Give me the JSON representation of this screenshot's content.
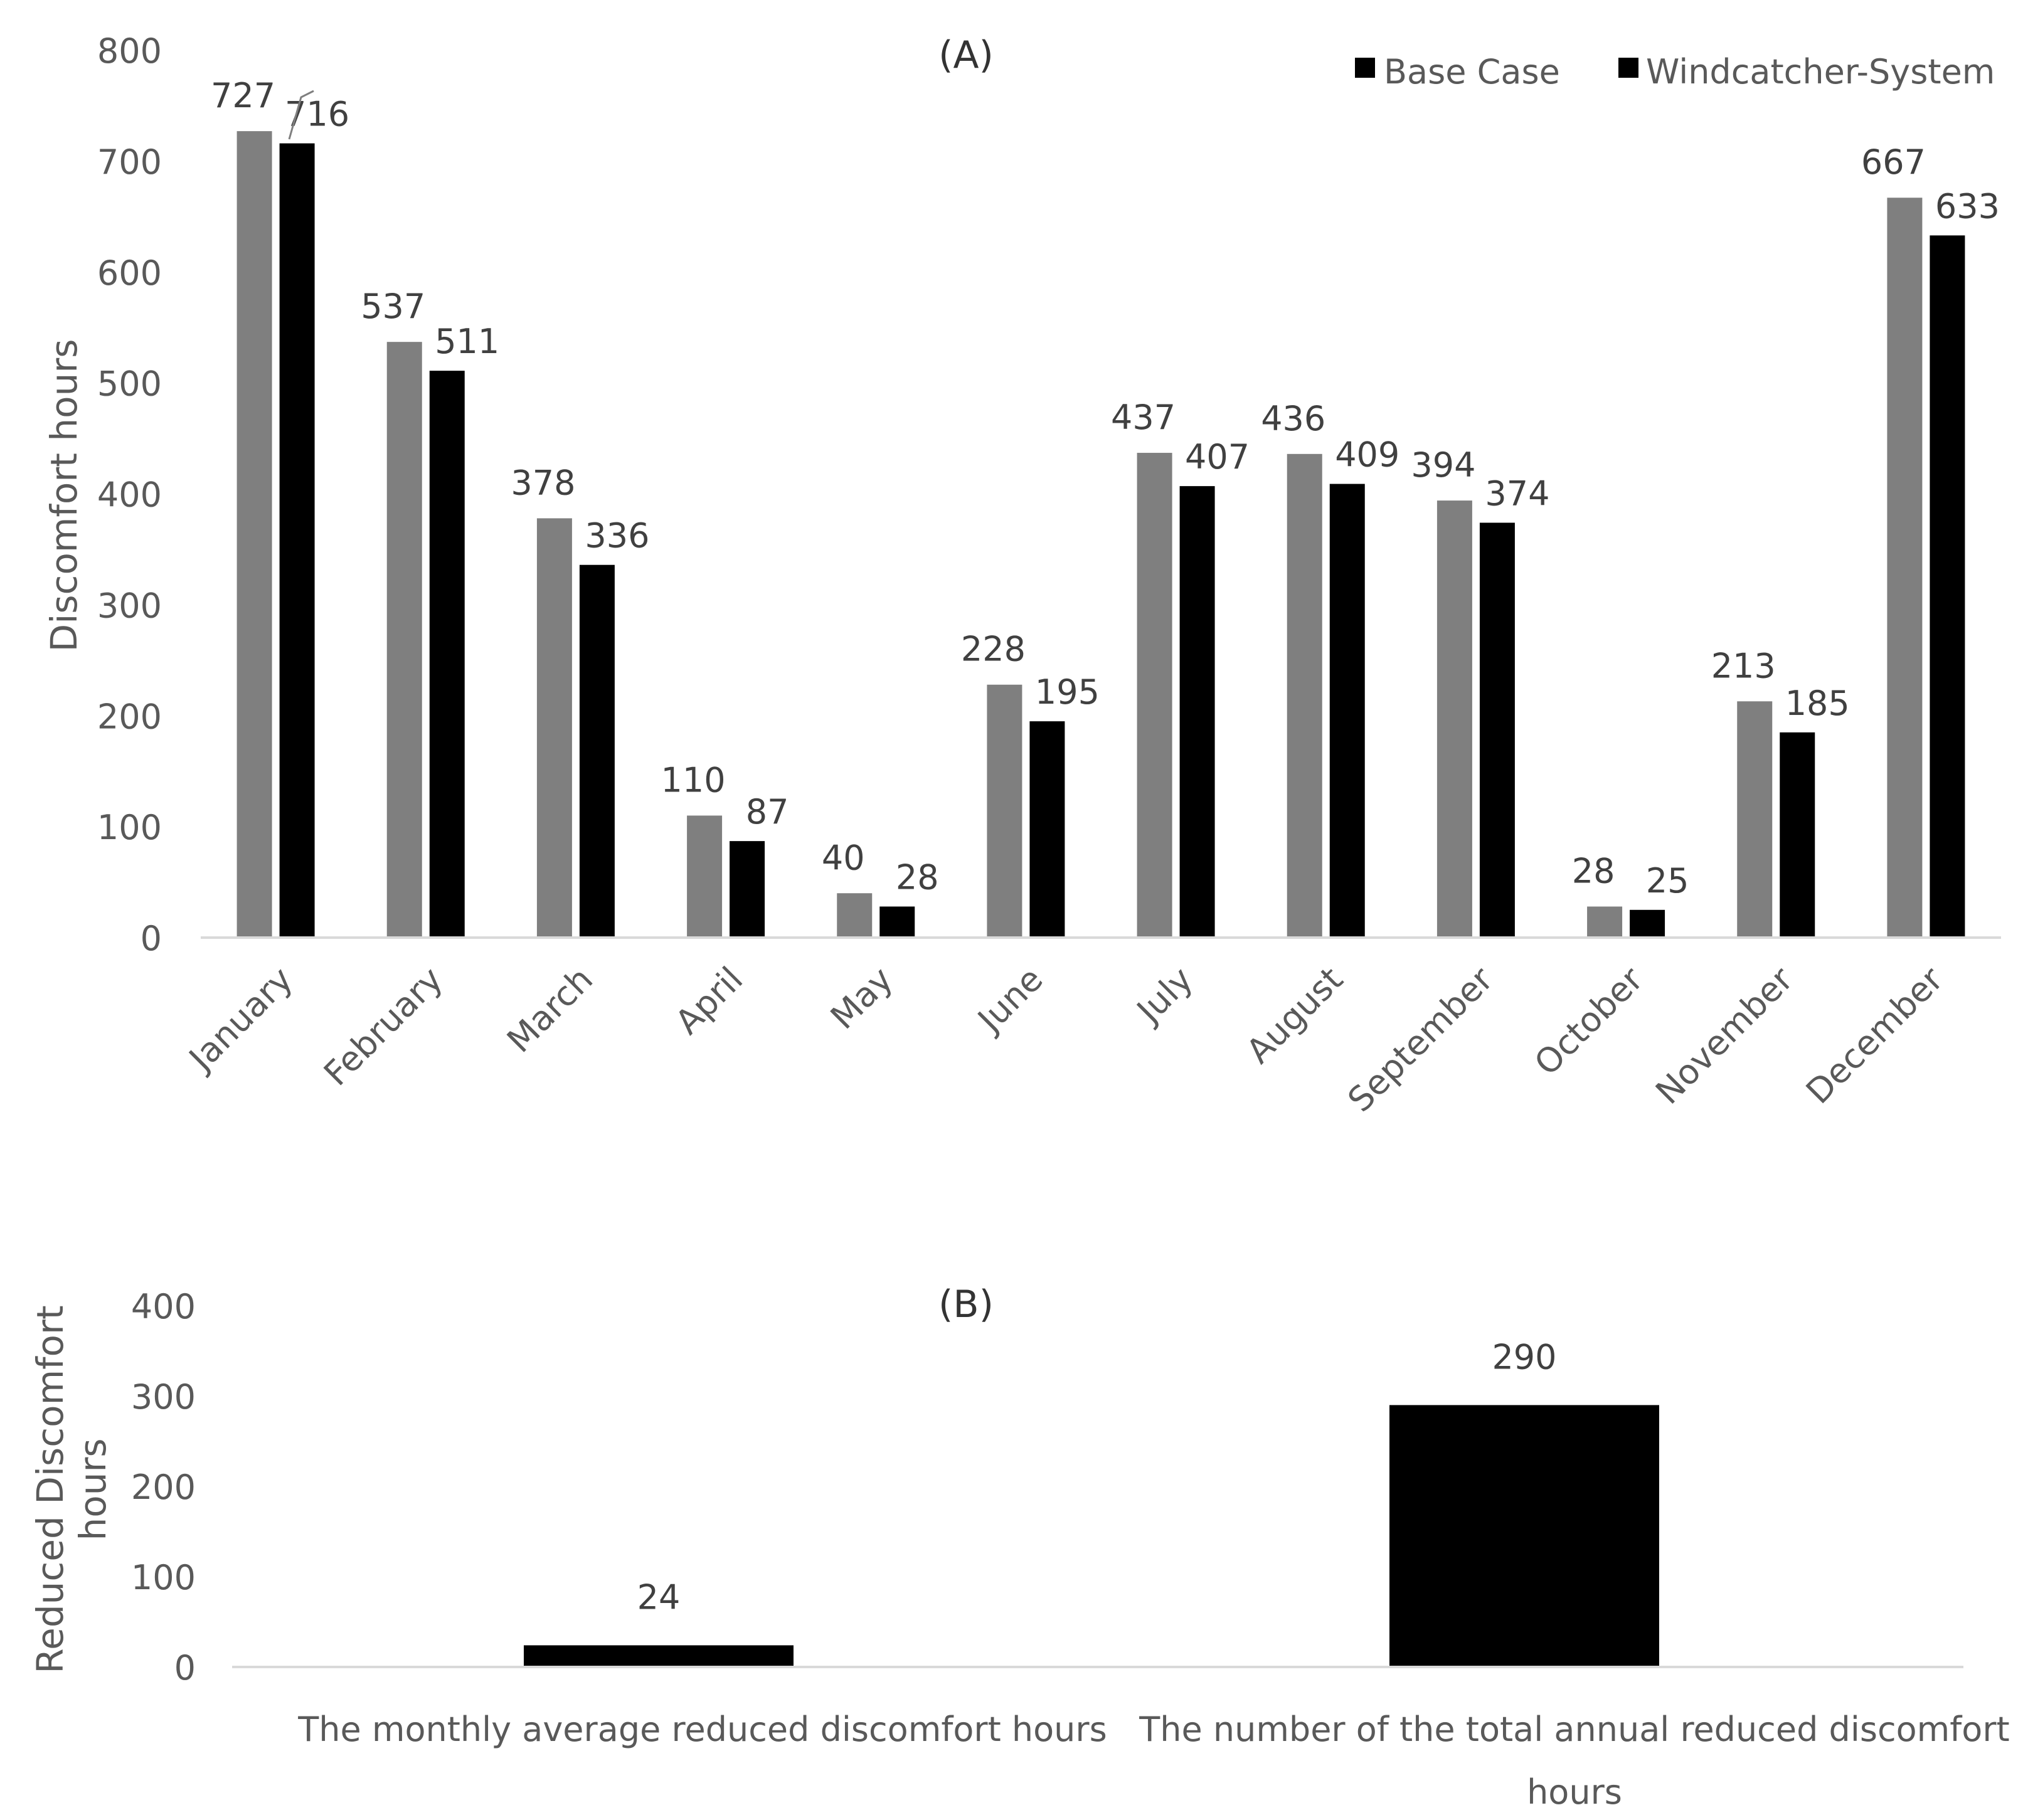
{
  "chart_data": [
    {
      "type": "bar",
      "title": "(A)",
      "xlabel": "",
      "ylabel": "Discomfort hours",
      "ylim": [
        0,
        800
      ],
      "yticks": [
        0,
        100,
        200,
        300,
        400,
        500,
        600,
        700,
        800
      ],
      "grid": false,
      "legend_position": "top-right",
      "categories": [
        "January",
        "February",
        "March",
        "April",
        "May",
        "June",
        "July",
        "August",
        "September",
        "October",
        "November",
        "December"
      ],
      "series": [
        {
          "name": "Base Case",
          "color": "#7f7f7f",
          "values": [
            727,
            537,
            378,
            110,
            40,
            228,
            437,
            436,
            394,
            28,
            213,
            667
          ]
        },
        {
          "name": "Windcatcher-System",
          "color": "#000000",
          "values": [
            716,
            511,
            336,
            87,
            28,
            195,
            407,
            409,
            374,
            25,
            185,
            633
          ]
        }
      ]
    },
    {
      "type": "bar",
      "title": "(B)",
      "xlabel": "",
      "ylabel_lines": [
        "Reduced Discomfort",
        "hours"
      ],
      "ylim": [
        0,
        400
      ],
      "yticks": [
        0,
        100,
        200,
        300,
        400
      ],
      "grid": false,
      "categories": [
        {
          "lines": [
            "The monthly average reduced discomfort hours"
          ]
        },
        {
          "lines": [
            "The number of the total annual reduced discomfort",
            "hours"
          ]
        }
      ],
      "series": [
        {
          "name": "Reduced Discomfort hours",
          "color": "#000000",
          "values": [
            24,
            290
          ]
        }
      ]
    }
  ]
}
